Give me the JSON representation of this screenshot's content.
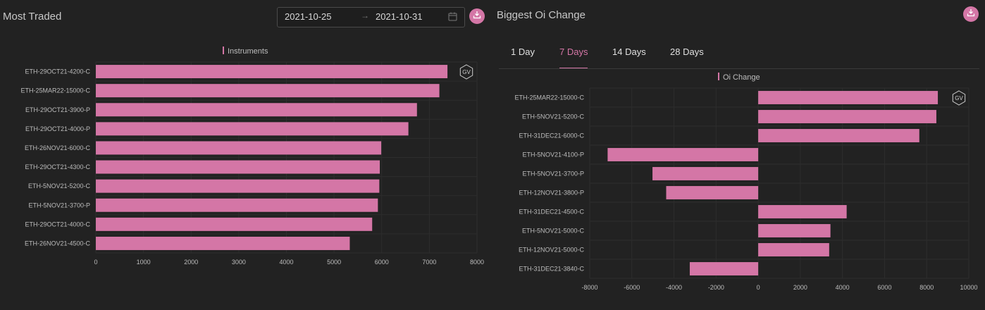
{
  "left": {
    "title": "Most Traded",
    "date_from": "2021-10-25",
    "date_to": "2021-10-31",
    "date_arrow": "→",
    "chart_data": {
      "type": "bar",
      "orientation": "horizontal",
      "title": "",
      "legend": "Instruments",
      "legend_position": "top-center",
      "categories": [
        "ETH-29OCT21-4200-C",
        "ETH-25MAR22-15000-C",
        "ETH-29OCT21-3900-P",
        "ETH-29OCT21-4000-P",
        "ETH-26NOV21-6000-C",
        "ETH-29OCT21-4300-C",
        "ETH-5NOV21-5200-C",
        "ETH-5NOV21-3700-P",
        "ETH-29OCT21-4000-C",
        "ETH-26NOV21-4500-C"
      ],
      "values": [
        7380,
        7210,
        6740,
        6560,
        5990,
        5960,
        5950,
        5920,
        5800,
        5330
      ],
      "xlim": [
        0,
        8000
      ],
      "xticks": [
        0,
        1000,
        2000,
        3000,
        4000,
        5000,
        6000,
        7000,
        8000
      ],
      "grid": true,
      "bar_color": "#d476a6"
    }
  },
  "right": {
    "title": "Biggest Oi Change",
    "tabs": [
      {
        "label": "1 Day",
        "active": false
      },
      {
        "label": "7 Days",
        "active": true
      },
      {
        "label": "14 Days",
        "active": false
      },
      {
        "label": "28 Days",
        "active": false
      }
    ],
    "chart_data": {
      "type": "bar",
      "orientation": "horizontal",
      "title": "",
      "legend": "Oi Change",
      "legend_position": "top-center",
      "categories": [
        "ETH-25MAR22-15000-C",
        "ETH-5NOV21-5200-C",
        "ETH-31DEC21-6000-C",
        "ETH-5NOV21-4100-P",
        "ETH-5NOV21-3700-P",
        "ETH-12NOV21-3800-P",
        "ETH-31DEC21-4500-C",
        "ETH-5NOV21-5000-C",
        "ETH-12NOV21-5000-C",
        "ETH-31DEC21-3840-C"
      ],
      "values": [
        8530,
        8460,
        7650,
        -7150,
        -5020,
        -4370,
        4200,
        3430,
        3370,
        -3250
      ],
      "xlim": [
        -8000,
        10000
      ],
      "xticks": [
        -8000,
        -6000,
        -4000,
        -2000,
        0,
        2000,
        4000,
        6000,
        8000,
        10000
      ],
      "grid": true,
      "bar_color": "#d476a6"
    }
  },
  "watermark": "GV",
  "colors": {
    "accent": "#d476a6",
    "background": "#222222"
  }
}
